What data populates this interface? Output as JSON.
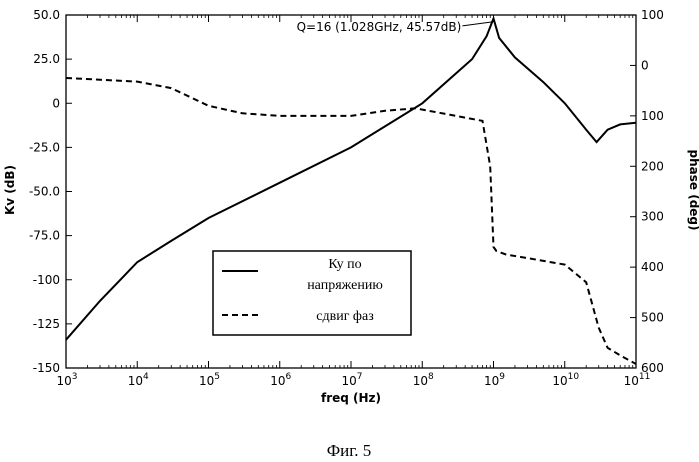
{
  "chart_data": {
    "type": "line",
    "xlabel": "freq (Hz)",
    "ylabel": "Kv (dB)",
    "y2label": "phase (deg)",
    "x_scale": "log",
    "xlim": [
      1000,
      100000000000
    ],
    "ylim": [
      -150,
      50
    ],
    "y2lim": [
      600,
      -100
    ],
    "x_ticks": [
      {
        "base": "10",
        "exp": "3",
        "value": 1000
      },
      {
        "base": "10",
        "exp": "4",
        "value": 10000
      },
      {
        "base": "10",
        "exp": "5",
        "value": 100000
      },
      {
        "base": "10",
        "exp": "6",
        "value": 1000000
      },
      {
        "base": "10",
        "exp": "7",
        "value": 10000000
      },
      {
        "base": "10",
        "exp": "8",
        "value": 100000000
      },
      {
        "base": "10",
        "exp": "9",
        "value": 1000000000
      },
      {
        "base": "10",
        "exp": "10",
        "value": 10000000000
      },
      {
        "base": "10",
        "exp": "11",
        "value": 100000000000
      }
    ],
    "y_ticks": [
      {
        "label": "50.0",
        "value": 50
      },
      {
        "label": "25.0",
        "value": 25
      },
      {
        "label": "0",
        "value": 0
      },
      {
        "label": "-25.0",
        "value": -25
      },
      {
        "label": "-50.0",
        "value": -50
      },
      {
        "label": "-75.0",
        "value": -75
      },
      {
        "label": "-100",
        "value": -100
      },
      {
        "label": "-125",
        "value": -125
      },
      {
        "label": "-150",
        "value": -150
      }
    ],
    "y2_ticks": [
      {
        "label": "100",
        "value": -100
      },
      {
        "label": "0",
        "value": 0
      },
      {
        "label": "100",
        "value": 100
      },
      {
        "label": "200",
        "value": 200
      },
      {
        "label": "300",
        "value": 300
      },
      {
        "label": "400",
        "value": 400
      },
      {
        "label": "500",
        "value": 500
      },
      {
        "label": "600",
        "value": 600
      }
    ],
    "series": [
      {
        "name": "Ку по напряжению",
        "axis": "left",
        "style": "solid",
        "x": [
          1000,
          3000,
          10000,
          30000,
          100000,
          1000000,
          10000000,
          100000000,
          500000000,
          800000000,
          1000000000,
          1200000000,
          2000000000,
          5000000000,
          10000000000,
          20000000000,
          28000000000,
          40000000000,
          60000000000,
          100000000000
        ],
        "y": [
          -134,
          -112,
          -90,
          -78,
          -65,
          -45,
          -25,
          0,
          25,
          38,
          48,
          37,
          26,
          12,
          0,
          -15,
          -22,
          -15,
          -12,
          -11
        ]
      },
      {
        "name": "сдвиг фаз",
        "axis": "right",
        "style": "dashed",
        "x": [
          1000,
          10000,
          30000,
          100000,
          300000,
          1000000,
          10000000,
          30000000,
          80000000,
          300000000,
          700000000,
          900000000,
          1000000000,
          1100000000,
          1500000000,
          3000000000,
          10000000000,
          20000000000,
          30000000000,
          40000000000,
          60000000000,
          100000000000
        ],
        "y": [
          25,
          32,
          45,
          80,
          95,
          100,
          100,
          90,
          85,
          100,
          110,
          200,
          360,
          368,
          375,
          382,
          395,
          430,
          520,
          560,
          575,
          592
        ]
      }
    ],
    "legend": {
      "position": "lower-center",
      "entries": [
        "Ку по",
        "напряжению",
        "сдвиг фаз"
      ]
    },
    "annotation": {
      "text": "Q=16 (1.028GHz, 45.57dB)",
      "x": 1028000000,
      "y": 45.57
    },
    "caption": "Фиг. 5",
    "grid": false
  }
}
